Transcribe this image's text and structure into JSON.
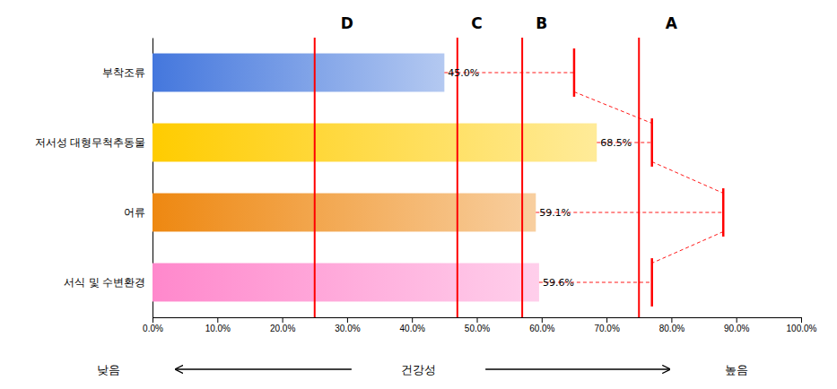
{
  "chart_data": {
    "type": "bar",
    "orientation": "horizontal",
    "categories": [
      "부착조류",
      "저서성 대형무척추동물",
      "어류",
      "서식 및 수변환경"
    ],
    "values": [
      45.0,
      68.5,
      59.1,
      59.6
    ],
    "value_labels": [
      "45.0%",
      "68.5%",
      "59.1%",
      "59.6%"
    ],
    "data_labels": true,
    "colors": [
      "#4477dd",
      "#ffcc00",
      "#ee8811",
      "#ff88cc"
    ],
    "xlim": [
      0,
      100
    ],
    "xticks": [
      {
        "value": 0,
        "label": "0.0%"
      },
      {
        "value": 10,
        "label": "10.0%"
      },
      {
        "value": 20,
        "label": "20.0%"
      },
      {
        "value": 30,
        "label": "30.0%"
      },
      {
        "value": 40,
        "label": "40.0%"
      },
      {
        "value": 50,
        "label": "50.0%"
      },
      {
        "value": 60,
        "label": "60.0%"
      },
      {
        "value": 70,
        "label": "70.0%"
      },
      {
        "value": 80,
        "label": "80.0%"
      },
      {
        "value": 90,
        "label": "90.0%"
      },
      {
        "value": 100,
        "label": "100.0%"
      }
    ],
    "grid": false,
    "grade_lines": [
      25.0,
      47.0,
      57.0,
      75.0
    ],
    "grade_labels": [
      {
        "x": 30.0,
        "label": "D"
      },
      {
        "x": 50.0,
        "label": "C"
      },
      {
        "x": 60.0,
        "label": "B"
      },
      {
        "x": 80.0,
        "label": "A"
      }
    ],
    "reference_values": [
      65.0,
      77.0,
      88.0,
      77.0
    ],
    "line_color": "#ff0000",
    "bottom_labels": [
      "낮음",
      "건강성",
      "높음"
    ]
  }
}
